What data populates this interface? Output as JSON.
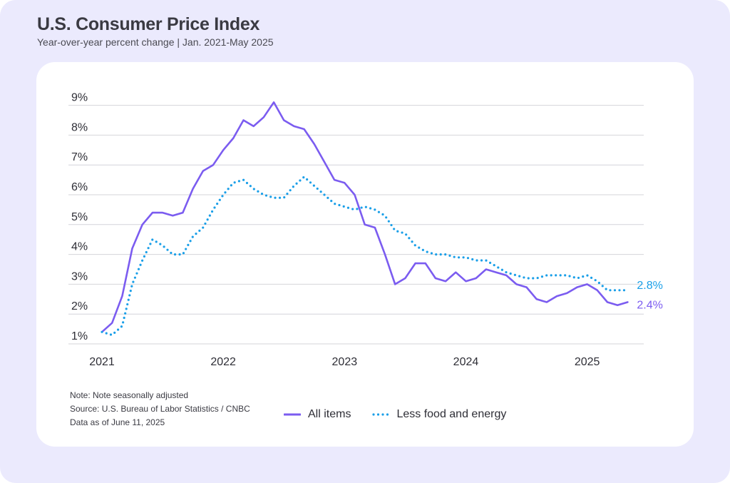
{
  "header": {
    "title": "U.S. Consumer Price Index",
    "subtitle": "Year-over-year percent change | Jan. 2021-May 2025"
  },
  "notes": {
    "note": "Note: Note seasonally adjusted",
    "source": "Source: U.S. Bureau of Labor Statistics / CNBC",
    "date": "Data as of June 11, 2025"
  },
  "colors": {
    "all_items": "#7b5cf0",
    "core": "#1a9fe8",
    "grid": "#d4d4da",
    "background": "#ebeafd"
  },
  "chart_data": {
    "type": "line",
    "title": "U.S. Consumer Price Index",
    "subtitle": "Year-over-year percent change | Jan. 2021-May 2025",
    "xlabel": "",
    "ylabel": "",
    "x_tick_labels": [
      "2021",
      "2022",
      "2023",
      "2024",
      "2025"
    ],
    "y_tick_labels": [
      "1%",
      "2%",
      "3%",
      "4%",
      "5%",
      "6%",
      "7%",
      "8%",
      "9%"
    ],
    "ylim": [
      1,
      9
    ],
    "grid": true,
    "legend_position": "bottom",
    "x": [
      "Jan 2021",
      "Feb 2021",
      "Mar 2021",
      "Apr 2021",
      "May 2021",
      "Jun 2021",
      "Jul 2021",
      "Aug 2021",
      "Sep 2021",
      "Oct 2021",
      "Nov 2021",
      "Dec 2021",
      "Jan 2022",
      "Feb 2022",
      "Mar 2022",
      "Apr 2022",
      "May 2022",
      "Jun 2022",
      "Jul 2022",
      "Aug 2022",
      "Sep 2022",
      "Oct 2022",
      "Nov 2022",
      "Dec 2022",
      "Jan 2023",
      "Feb 2023",
      "Mar 2023",
      "Apr 2023",
      "May 2023",
      "Jun 2023",
      "Jul 2023",
      "Aug 2023",
      "Sep 2023",
      "Oct 2023",
      "Nov 2023",
      "Dec 2023",
      "Jan 2024",
      "Feb 2024",
      "Mar 2024",
      "Apr 2024",
      "May 2024",
      "Jun 2024",
      "Jul 2024",
      "Aug 2024",
      "Sep 2024",
      "Oct 2024",
      "Nov 2024",
      "Dec 2024",
      "Jan 2025",
      "Feb 2025",
      "Mar 2025",
      "Apr 2025",
      "May 2025"
    ],
    "series": [
      {
        "name": "All items",
        "style": "solid",
        "end_label": "2.4%",
        "values": [
          1.4,
          1.7,
          2.6,
          4.2,
          5.0,
          5.4,
          5.4,
          5.3,
          5.4,
          6.2,
          6.8,
          7.0,
          7.5,
          7.9,
          8.5,
          8.3,
          8.6,
          9.1,
          8.5,
          8.3,
          8.2,
          7.7,
          7.1,
          6.5,
          6.4,
          6.0,
          5.0,
          4.9,
          4.0,
          3.0,
          3.2,
          3.7,
          3.7,
          3.2,
          3.1,
          3.4,
          3.1,
          3.2,
          3.5,
          3.4,
          3.3,
          3.0,
          2.9,
          2.5,
          2.4,
          2.6,
          2.7,
          2.9,
          3.0,
          2.8,
          2.4,
          2.3,
          2.4
        ]
      },
      {
        "name": "Less food and energy",
        "style": "dotted",
        "end_label": "2.8%",
        "values": [
          1.4,
          1.3,
          1.6,
          3.0,
          3.8,
          4.5,
          4.3,
          4.0,
          4.0,
          4.6,
          4.9,
          5.5,
          6.0,
          6.4,
          6.5,
          6.2,
          6.0,
          5.9,
          5.9,
          6.3,
          6.6,
          6.3,
          6.0,
          5.7,
          5.6,
          5.5,
          5.6,
          5.5,
          5.3,
          4.8,
          4.7,
          4.3,
          4.1,
          4.0,
          4.0,
          3.9,
          3.9,
          3.8,
          3.8,
          3.6,
          3.4,
          3.3,
          3.2,
          3.2,
          3.3,
          3.3,
          3.3,
          3.2,
          3.3,
          3.1,
          2.8,
          2.8,
          2.8
        ]
      }
    ]
  }
}
